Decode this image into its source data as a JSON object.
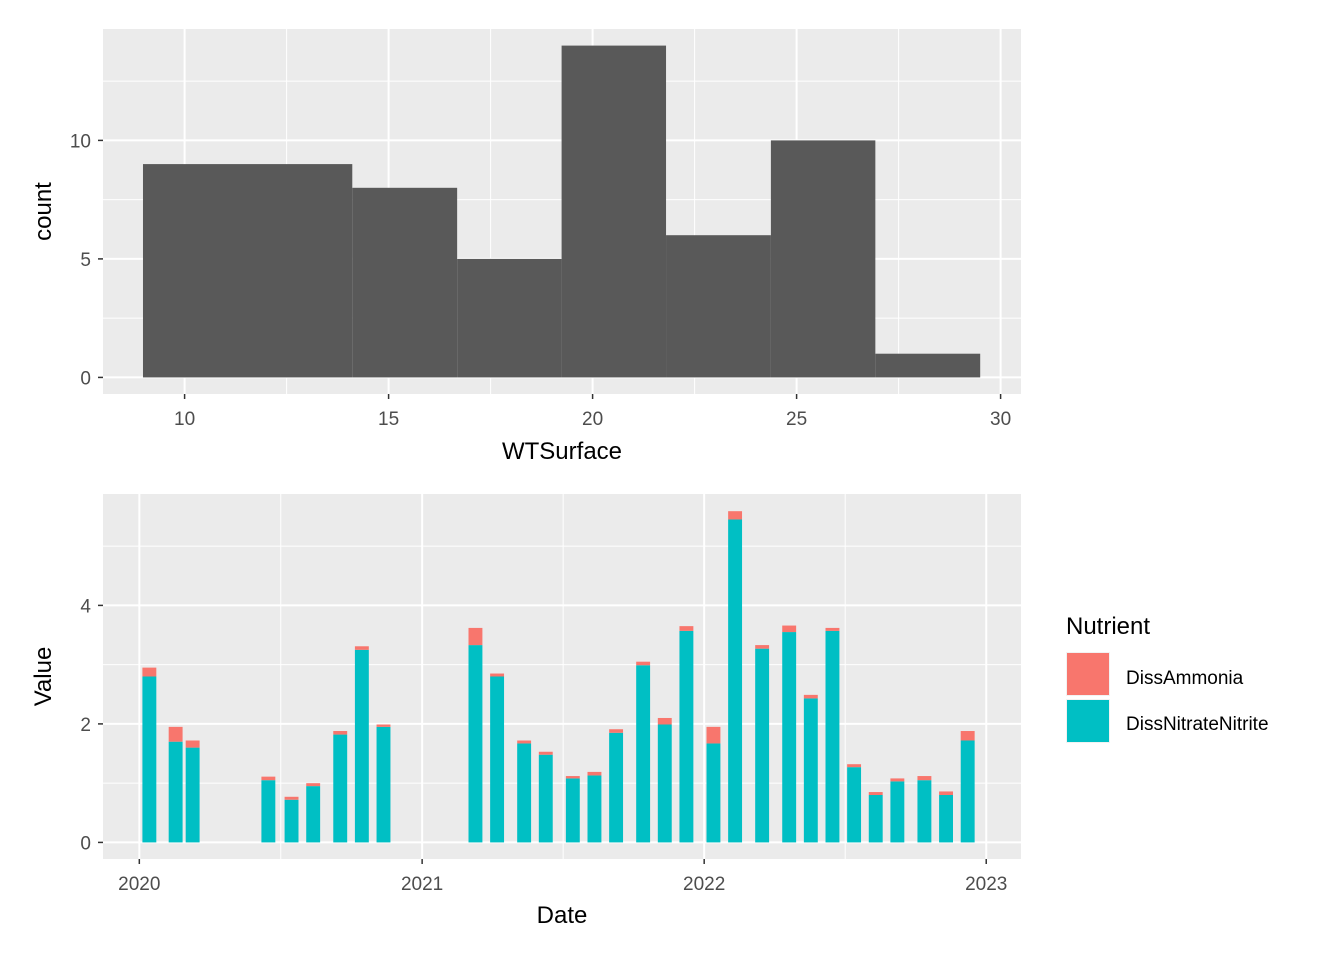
{
  "chart_data": [
    {
      "type": "histogram",
      "xlabel": "WTSurface",
      "ylabel": "count",
      "xlim": [
        8.0,
        30.5
      ],
      "ylim": [
        -0.7,
        14.7
      ],
      "x_ticks": [
        10,
        15,
        20,
        25,
        30
      ],
      "y_ticks": [
        0,
        5,
        10
      ],
      "bins": [
        {
          "x0": 8.98,
          "x1": 14.11,
          "count": 9
        },
        {
          "x0": 14.11,
          "x1": 16.68,
          "count": 8
        },
        {
          "x0": 16.68,
          "x1": 19.24,
          "count": 5
        },
        {
          "x0": 19.24,
          "x1": 21.8,
          "count": 14
        },
        {
          "x0": 21.8,
          "x1": 24.37,
          "count": 6
        },
        {
          "x0": 24.37,
          "x1": 26.93,
          "count": 10
        },
        {
          "x0": 26.93,
          "x1": 29.5,
          "count": 1
        }
      ],
      "colors": {
        "fill": "#595959",
        "panel": "#ebebeb",
        "grid": "#ffffff"
      }
    },
    {
      "type": "bar",
      "stacked": true,
      "xlabel": "Date",
      "ylabel": "Value",
      "x_ticks": [
        {
          "label": "2020",
          "date": "2020-01-01"
        },
        {
          "label": "2021",
          "date": "2021-01-01"
        },
        {
          "label": "2022",
          "date": "2022-01-01"
        },
        {
          "label": "2023",
          "date": "2023-01-01"
        }
      ],
      "xlim": [
        "2019-11-15",
        "2023-02-15"
      ],
      "y_ticks": [
        0,
        2,
        4
      ],
      "ylim": [
        -0.28,
        5.88
      ],
      "legend": {
        "title": "Nutrient",
        "position": "right",
        "entries": [
          "DissAmmonia",
          "DissNitrateNitrite"
        ]
      },
      "series_colors": {
        "DissAmmonia": "#F8766D",
        "DissNitrateNitrite": "#00BFC4"
      },
      "bar_width_days": 18,
      "rows": [
        {
          "date": "2020-01-14",
          "DissNitrateNitrite": 2.8,
          "DissAmmonia": 0.15
        },
        {
          "date": "2020-02-17",
          "DissNitrateNitrite": 1.7,
          "DissAmmonia": 0.25
        },
        {
          "date": "2020-03-10",
          "DissNitrateNitrite": 1.6,
          "DissAmmonia": 0.12
        },
        {
          "date": "2020-06-16",
          "DissNitrateNitrite": 1.05,
          "DissAmmonia": 0.06
        },
        {
          "date": "2020-07-16",
          "DissNitrateNitrite": 0.72,
          "DissAmmonia": 0.05
        },
        {
          "date": "2020-08-13",
          "DissNitrateNitrite": 0.95,
          "DissAmmonia": 0.05
        },
        {
          "date": "2020-09-17",
          "DissNitrateNitrite": 1.82,
          "DissAmmonia": 0.06
        },
        {
          "date": "2020-10-15",
          "DissNitrateNitrite": 3.25,
          "DissAmmonia": 0.06
        },
        {
          "date": "2020-11-12",
          "DissNitrateNitrite": 1.95,
          "DissAmmonia": 0.04
        },
        {
          "date": "2021-03-11",
          "DissNitrateNitrite": 3.33,
          "DissAmmonia": 0.29
        },
        {
          "date": "2021-04-08",
          "DissNitrateNitrite": 2.8,
          "DissAmmonia": 0.05
        },
        {
          "date": "2021-05-13",
          "DissNitrateNitrite": 1.67,
          "DissAmmonia": 0.05
        },
        {
          "date": "2021-06-10",
          "DissNitrateNitrite": 1.48,
          "DissAmmonia": 0.05
        },
        {
          "date": "2021-07-15",
          "DissNitrateNitrite": 1.08,
          "DissAmmonia": 0.04
        },
        {
          "date": "2021-08-12",
          "DissNitrateNitrite": 1.13,
          "DissAmmonia": 0.06
        },
        {
          "date": "2021-09-09",
          "DissNitrateNitrite": 1.85,
          "DissAmmonia": 0.06
        },
        {
          "date": "2021-10-14",
          "DissNitrateNitrite": 2.99,
          "DissAmmonia": 0.06
        },
        {
          "date": "2021-11-11",
          "DissNitrateNitrite": 1.99,
          "DissAmmonia": 0.11
        },
        {
          "date": "2021-12-09",
          "DissNitrateNitrite": 3.57,
          "DissAmmonia": 0.08
        },
        {
          "date": "2022-01-13",
          "DissNitrateNitrite": 1.67,
          "DissAmmonia": 0.28
        },
        {
          "date": "2022-02-10",
          "DissNitrateNitrite": 5.45,
          "DissAmmonia": 0.14
        },
        {
          "date": "2022-03-17",
          "DissNitrateNitrite": 3.27,
          "DissAmmonia": 0.06
        },
        {
          "date": "2022-04-21",
          "DissNitrateNitrite": 3.55,
          "DissAmmonia": 0.11
        },
        {
          "date": "2022-05-19",
          "DissNitrateNitrite": 2.43,
          "DissAmmonia": 0.06
        },
        {
          "date": "2022-06-16",
          "DissNitrateNitrite": 3.57,
          "DissAmmonia": 0.05
        },
        {
          "date": "2022-07-14",
          "DissNitrateNitrite": 1.27,
          "DissAmmonia": 0.05
        },
        {
          "date": "2022-08-11",
          "DissNitrateNitrite": 0.8,
          "DissAmmonia": 0.05
        },
        {
          "date": "2022-09-08",
          "DissNitrateNitrite": 1.03,
          "DissAmmonia": 0.05
        },
        {
          "date": "2022-10-13",
          "DissNitrateNitrite": 1.05,
          "DissAmmonia": 0.07
        },
        {
          "date": "2022-11-10",
          "DissNitrateNitrite": 0.8,
          "DissAmmonia": 0.06
        },
        {
          "date": "2022-12-08",
          "DissNitrateNitrite": 1.72,
          "DissAmmonia": 0.16
        }
      ]
    }
  ]
}
